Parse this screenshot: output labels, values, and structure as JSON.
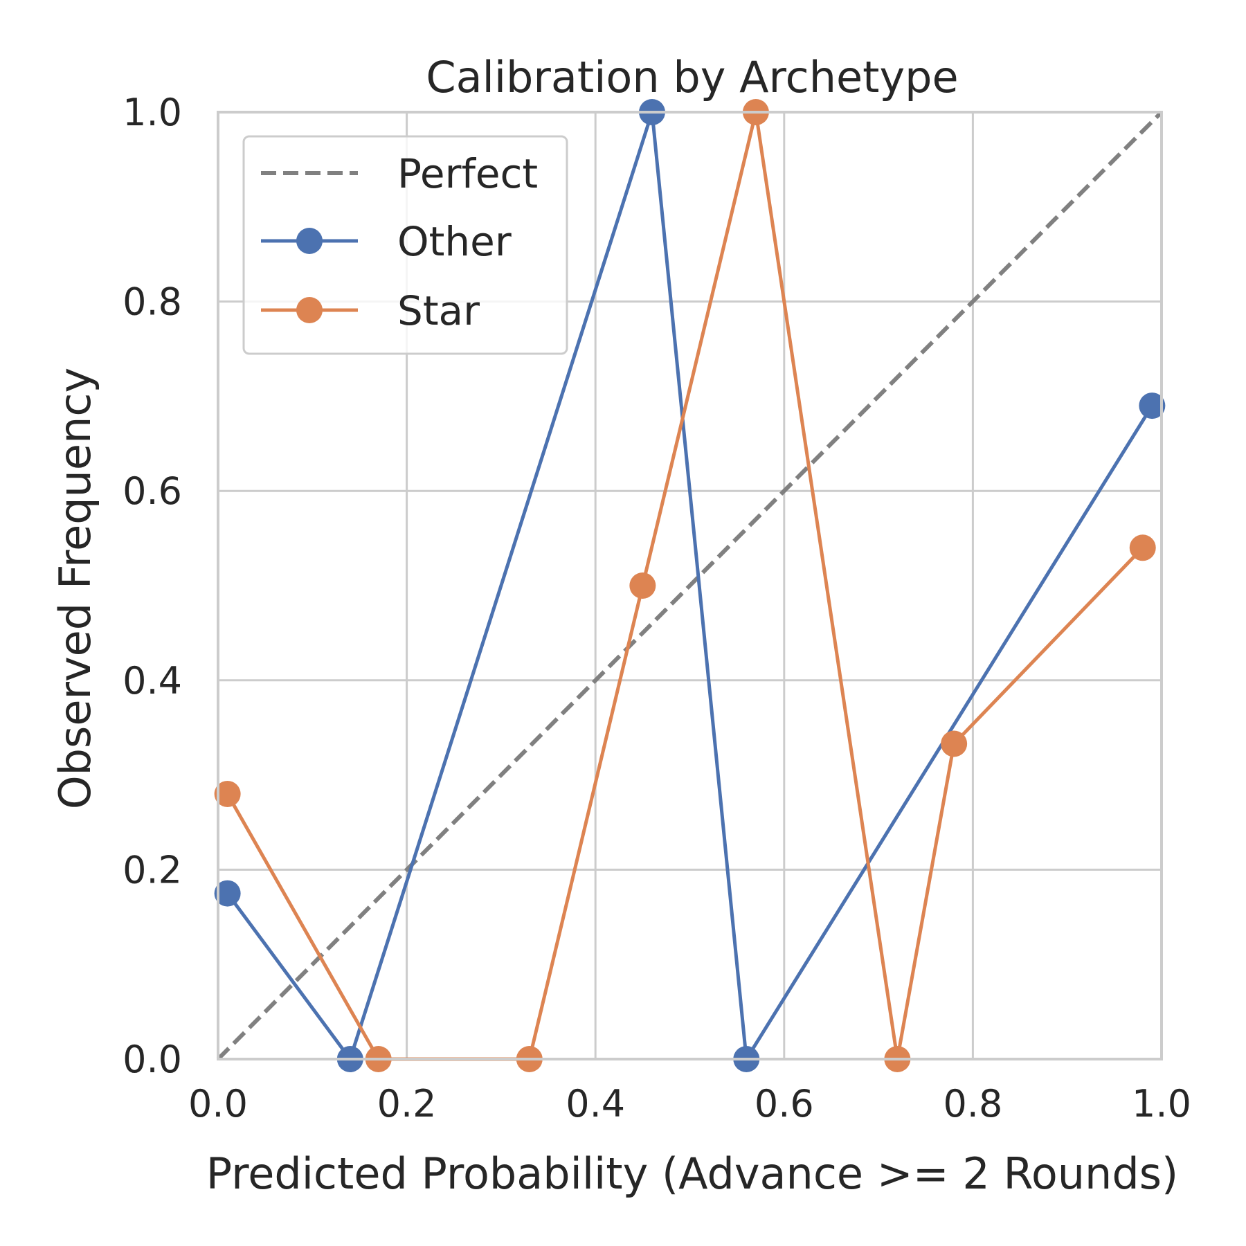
{
  "chart_data": {
    "type": "line",
    "title": "Calibration by Archetype",
    "xlabel": "Predicted Probability (Advance >= 2 Rounds)",
    "ylabel": "Observed Frequency",
    "xlim": [
      0,
      1
    ],
    "ylim": [
      0,
      1
    ],
    "xticks": [
      "0.0",
      "0.2",
      "0.4",
      "0.6",
      "0.8",
      "1.0"
    ],
    "yticks": [
      "0.0",
      "0.2",
      "0.4",
      "0.6",
      "0.8",
      "1.0"
    ],
    "grid": true,
    "legend_position": "upper-left",
    "reference_line": {
      "name": "Perfect",
      "style": "dashed",
      "color": "#808080",
      "points": [
        [
          0,
          0
        ],
        [
          1,
          1
        ]
      ]
    },
    "series": [
      {
        "name": "Other",
        "color": "#4c72b0",
        "marker": "circle",
        "points": [
          [
            0.01,
            0.175
          ],
          [
            0.14,
            0.0
          ],
          [
            0.46,
            1.0
          ],
          [
            0.56,
            0.0
          ],
          [
            0.99,
            0.69
          ]
        ]
      },
      {
        "name": "Star",
        "color": "#dd8452",
        "marker": "circle",
        "points": [
          [
            0.01,
            0.28
          ],
          [
            0.17,
            0.0
          ],
          [
            0.33,
            0.0
          ],
          [
            0.45,
            0.5
          ],
          [
            0.57,
            1.0
          ],
          [
            0.72,
            0.0
          ],
          [
            0.78,
            0.333
          ],
          [
            0.98,
            0.54
          ]
        ]
      }
    ]
  }
}
